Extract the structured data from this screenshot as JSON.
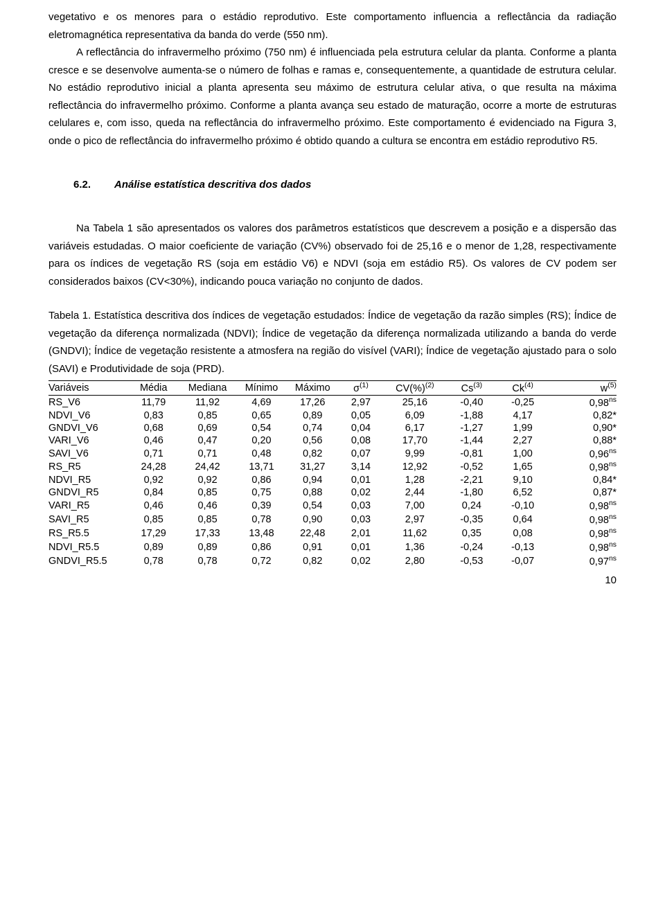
{
  "paragraph1": "vegetativo e os menores para o estádio reprodutivo. Este comportamento influencia a reflectância da radiação eletromagnética representativa da banda do verde (550 nm).",
  "paragraph2_indent": "A reflectância do infravermelho próximo (750 nm) é influenciada pela estrutura celular da planta. Conforme a planta cresce e se desenvolve aumenta-se o número de folhas e ramas e, consequentemente, a quantidade de estrutura celular. No estádio reprodutivo inicial a planta apresenta seu máximo de estrutura celular ativa, o que resulta na máxima reflectância do infravermelho próximo. Conforme a planta avança seu estado de maturação, ocorre a morte de estruturas celulares e, com isso, queda na reflectância do infravermelho próximo. Este comportamento é evidenciado na Figura 3, onde o pico de reflectância do infravermelho próximo é obtido quando a cultura se encontra em estádio reprodutivo R5.",
  "section_number": "6.2.",
  "section_title": "Análise estatística descritiva dos dados",
  "paragraph3": "Na Tabela 1 são apresentados os valores dos parâmetros estatísticos que descrevem a posição e a dispersão das variáveis estudadas. O maior coeficiente de variação (CV%) observado foi de 25,16 e o menor de 1,28, respectivamente para os índices de vegetação RS (soja em estádio V6) e NDVI (soja em estádio R5). Os valores de CV podem ser considerados baixos (CV<30%), indicando pouca variação no conjunto de dados.",
  "caption": "Tabela 1. Estatística descritiva dos índices de vegetação estudados: Índice de vegetação da razão simples (RS); Índice de vegetação da diferença normalizada (NDVI); Índice de vegetação da diferença normalizada utilizando a banda do verde (GNDVI); Índice de vegetação resistente a atmosfera na região do visível (VARI); Índice de vegetação ajustado para o solo (SAVI) e Produtividade de soja (PRD).",
  "table": {
    "headers": [
      "Variáveis",
      "Média",
      "Mediana",
      "Mínimo",
      "Máximo",
      "σ",
      "CV(%)",
      "Cs",
      "Ck",
      "w"
    ],
    "supers": [
      "",
      "",
      "",
      "",
      "",
      "(1)",
      "(2)",
      "(3)",
      "(4)",
      "(5)"
    ],
    "rows": [
      {
        "v": "RS_V6",
        "d": [
          "11,79",
          "11,92",
          "4,69",
          "17,26",
          "2,97",
          "25,16",
          "-0,40",
          "-0,25",
          "0,98"
        ],
        "sig": "ns"
      },
      {
        "v": "NDVI_V6",
        "d": [
          "0,83",
          "0,85",
          "0,65",
          "0,89",
          "0,05",
          "6,09",
          "-1,88",
          "4,17",
          "0,82"
        ],
        "sig": "*"
      },
      {
        "v": "GNDVI_V6",
        "d": [
          "0,68",
          "0,69",
          "0,54",
          "0,74",
          "0,04",
          "6,17",
          "-1,27",
          "1,99",
          "0,90"
        ],
        "sig": "*"
      },
      {
        "v": "VARI_V6",
        "d": [
          "0,46",
          "0,47",
          "0,20",
          "0,56",
          "0,08",
          "17,70",
          "-1,44",
          "2,27",
          "0,88"
        ],
        "sig": "*"
      },
      {
        "v": "SAVI_V6",
        "d": [
          "0,71",
          "0,71",
          "0,48",
          "0,82",
          "0,07",
          "9,99",
          "-0,81",
          "1,00",
          "0,96"
        ],
        "sig": "ns"
      },
      {
        "v": "RS_R5",
        "d": [
          "24,28",
          "24,42",
          "13,71",
          "31,27",
          "3,14",
          "12,92",
          "-0,52",
          "1,65",
          "0,98"
        ],
        "sig": "ns"
      },
      {
        "v": "NDVI_R5",
        "d": [
          "0,92",
          "0,92",
          "0,86",
          "0,94",
          "0,01",
          "1,28",
          "-2,21",
          "9,10",
          "0,84"
        ],
        "sig": "*"
      },
      {
        "v": "GNDVI_R5",
        "d": [
          "0,84",
          "0,85",
          "0,75",
          "0,88",
          "0,02",
          "2,44",
          "-1,80",
          "6,52",
          "0,87"
        ],
        "sig": "*"
      },
      {
        "v": "VARI_R5",
        "d": [
          "0,46",
          "0,46",
          "0,39",
          "0,54",
          "0,03",
          "7,00",
          "0,24",
          "-0,10",
          "0,98"
        ],
        "sig": "ns"
      },
      {
        "v": "SAVI_R5",
        "d": [
          "0,85",
          "0,85",
          "0,78",
          "0,90",
          "0,03",
          "2,97",
          "-0,35",
          "0,64",
          "0,98"
        ],
        "sig": "ns"
      },
      {
        "v": "RS_R5.5",
        "d": [
          "17,29",
          "17,33",
          "13,48",
          "22,48",
          "2,01",
          "11,62",
          "0,35",
          "0,08",
          "0,98"
        ],
        "sig": "ns"
      },
      {
        "v": "NDVI_R5.5",
        "d": [
          "0,89",
          "0,89",
          "0,86",
          "0,91",
          "0,01",
          "1,36",
          "-0,24",
          "-0,13",
          "0,98"
        ],
        "sig": "ns"
      },
      {
        "v": "GNDVI_R5.5",
        "d": [
          "0,78",
          "0,78",
          "0,72",
          "0,82",
          "0,02",
          "2,80",
          "-0,53",
          "-0,07",
          "0,97"
        ],
        "sig": "ns"
      }
    ]
  },
  "page_number": "10"
}
